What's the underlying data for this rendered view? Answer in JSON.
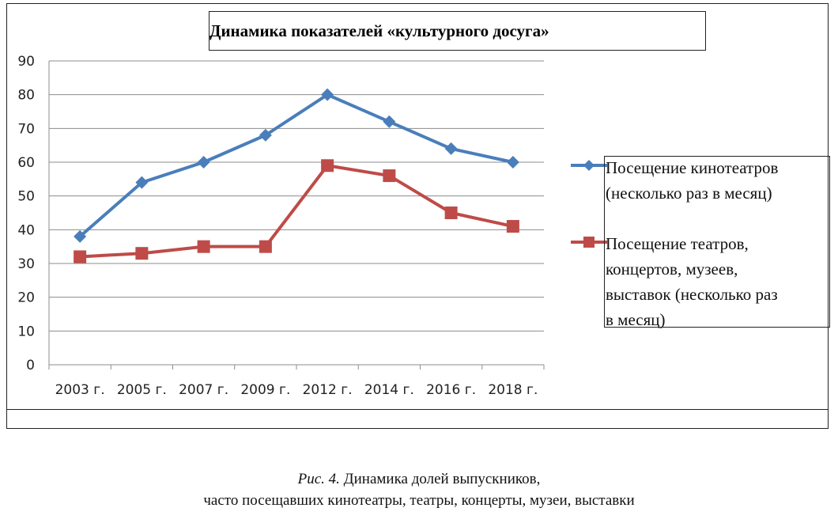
{
  "chart_data": {
    "type": "line",
    "title": "Динамика показателей «культурного досуга»",
    "categories": [
      "2003 г.",
      "2005 г.",
      "2007 г.",
      "2009 г.",
      "2012 г.",
      "2014 г.",
      "2016 г.",
      "2018 г."
    ],
    "series": [
      {
        "name": "Посещение кинотеатров (несколько раз в месяц)",
        "values": [
          38,
          54,
          60,
          68,
          80,
          72,
          64,
          60
        ],
        "color": "#4A7EBB",
        "marker": "diamond"
      },
      {
        "name": "Посещение театров, концертов, музеев, выставок (несколько раз в месяц)",
        "values": [
          32,
          33,
          35,
          35,
          59,
          56,
          45,
          41
        ],
        "color": "#BE4B48",
        "marker": "square"
      }
    ],
    "ylim": [
      0,
      90
    ],
    "yticks": [
      0,
      10,
      20,
      30,
      40,
      50,
      60,
      70,
      80,
      90
    ],
    "grid": true,
    "legend_position": "right",
    "xlabel": "",
    "ylabel": ""
  },
  "legend": {
    "series1_lines": [
      "Посещение кинотеатров",
      "(несколько раз в месяц)"
    ],
    "series2_lines": [
      "Посещение театров,",
      "концертов, музеев,",
      "выставок (несколько раз",
      "в месяц)"
    ]
  },
  "caption": {
    "fig_label": "Рис. 4.",
    "line1": "Динамика долей выпускников,",
    "line2": "часто посещавших кинотеатры, театры, концерты, музеи, выставки"
  }
}
